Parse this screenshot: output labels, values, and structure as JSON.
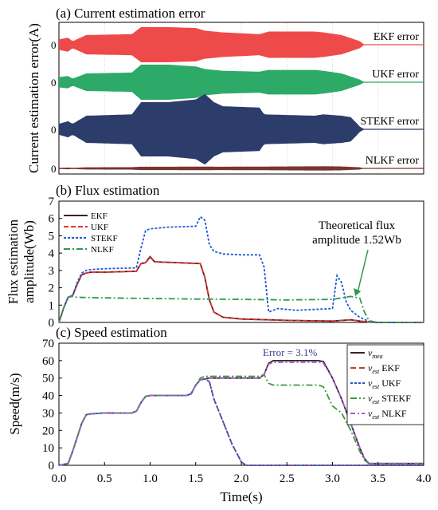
{
  "figure": {
    "shared_xlabel": "Time(s)",
    "x_ticks": [
      "0.0",
      "0.5",
      "1.0",
      "1.5",
      "2.0",
      "2.5",
      "3.0",
      "3.5",
      "4.0"
    ]
  },
  "chart_data": [
    {
      "panel": "a",
      "type": "area",
      "title": "(a) Current estimation error",
      "ylabel": "Current estimation error(A)",
      "xlim": [
        0,
        4
      ],
      "series": [
        {
          "name": "EKF error",
          "color": "#ef4a4a",
          "zero_label": "0",
          "envelope": {
            "t": [
              0.0,
              0.1,
              0.15,
              0.3,
              0.8,
              0.9,
              1.2,
              1.5,
              1.6,
              1.8,
              2.2,
              2.3,
              2.8,
              2.9,
              3.1,
              3.3,
              3.35,
              4.0
            ],
            "amplitude": [
              0.3,
              0.4,
              0.2,
              0.55,
              0.6,
              1.0,
              1.0,
              0.95,
              0.8,
              0.7,
              0.6,
              0.75,
              0.75,
              0.7,
              0.55,
              0.2,
              0.0,
              0.0
            ]
          }
        },
        {
          "name": "UKF error",
          "color": "#2eaa68",
          "zero_label": "0",
          "envelope": {
            "t": [
              0.0,
              0.1,
              0.15,
              0.3,
              0.8,
              0.9,
              1.2,
              1.5,
              1.6,
              1.8,
              2.2,
              2.3,
              2.8,
              2.9,
              3.1,
              3.3,
              3.35,
              4.0
            ],
            "amplitude": [
              0.3,
              0.35,
              0.2,
              0.5,
              0.55,
              1.0,
              1.0,
              0.9,
              0.75,
              0.65,
              0.6,
              0.7,
              0.7,
              0.65,
              0.5,
              0.15,
              0.0,
              0.0
            ]
          }
        },
        {
          "name": "STEKF error",
          "color": "#2c3d6b",
          "zero_label": "0",
          "envelope": {
            "t": [
              0.0,
              0.1,
              0.15,
              0.3,
              0.8,
              0.9,
              1.2,
              1.5,
              1.6,
              1.7,
              1.8,
              2.2,
              2.25,
              2.8,
              2.9,
              3.1,
              3.2,
              3.3,
              3.35,
              4.0
            ],
            "amplitude": [
              0.2,
              0.3,
              0.2,
              0.5,
              0.55,
              1.0,
              1.0,
              1.1,
              1.3,
              1.0,
              0.85,
              0.8,
              0.55,
              0.5,
              0.55,
              0.5,
              0.45,
              0.1,
              0.0,
              0.0
            ]
          }
        },
        {
          "name": "NLKF error",
          "color": "#7a3533",
          "zero_label": "0",
          "envelope": {
            "t": [
              0.0,
              0.1,
              0.15,
              0.3,
              0.8,
              0.9,
              1.2,
              1.5,
              1.8,
              2.5,
              2.9,
              3.1,
              3.3,
              3.35,
              4.0
            ],
            "amplitude": [
              0.1,
              0.15,
              0.1,
              0.2,
              0.22,
              0.3,
              0.3,
              0.32,
              0.3,
              0.35,
              0.38,
              0.35,
              0.2,
              0.0,
              0.0
            ]
          }
        }
      ]
    },
    {
      "panel": "b",
      "type": "line",
      "title": "(b) Flux estimation",
      "ylabel": "Flux estimation amplitude(Wb)",
      "ylim": [
        0,
        7
      ],
      "y_ticks": [
        "0",
        "1",
        "2",
        "3",
        "4",
        "5",
        "6",
        "7"
      ],
      "xlim": [
        0,
        4
      ],
      "legend_position": "top-left",
      "annotation": {
        "lines": [
          "Theoretical flux",
          "amplitude 1.52Wb"
        ],
        "arrow_to": [
          3.25,
          1.52
        ]
      },
      "series": [
        {
          "name": "EKF",
          "color": "#3a2424",
          "dash": "",
          "x": [
            0.0,
            0.05,
            0.1,
            0.15,
            0.2,
            0.25,
            0.3,
            0.35,
            0.5,
            0.85,
            0.9,
            0.95,
            1.0,
            1.05,
            1.3,
            1.55,
            1.6,
            1.65,
            1.7,
            1.8,
            2.0,
            2.5,
            3.0,
            3.2,
            3.3,
            3.4,
            3.5,
            4.0
          ],
          "y": [
            0.0,
            0.8,
            1.45,
            1.55,
            2.2,
            2.75,
            2.85,
            2.9,
            2.9,
            2.95,
            3.4,
            3.45,
            3.8,
            3.5,
            3.45,
            3.4,
            2.6,
            1.3,
            0.6,
            0.3,
            0.2,
            0.12,
            0.08,
            0.15,
            0.08,
            0.02,
            0.0,
            0.0
          ]
        },
        {
          "name": "UKF",
          "color": "#e8322c",
          "dash": "6,3",
          "x": [
            0.0,
            0.05,
            0.1,
            0.15,
            0.2,
            0.25,
            0.3,
            0.35,
            0.5,
            0.85,
            0.9,
            0.95,
            1.0,
            1.05,
            1.3,
            1.55,
            1.6,
            1.65,
            1.7,
            1.8,
            2.0,
            2.5,
            3.0,
            3.2,
            3.3,
            3.4,
            3.5,
            4.0
          ],
          "y": [
            0.0,
            0.8,
            1.45,
            1.55,
            2.2,
            2.75,
            2.85,
            2.9,
            2.9,
            2.95,
            3.4,
            3.45,
            3.75,
            3.5,
            3.45,
            3.4,
            2.6,
            1.3,
            0.6,
            0.3,
            0.2,
            0.12,
            0.08,
            0.15,
            0.08,
            0.02,
            0.0,
            0.0
          ]
        },
        {
          "name": "STEKF",
          "color": "#1f5bd6",
          "dash": "3,2",
          "x": [
            0.0,
            0.05,
            0.1,
            0.15,
            0.2,
            0.25,
            0.3,
            0.35,
            0.5,
            0.85,
            0.9,
            0.95,
            1.0,
            1.2,
            1.5,
            1.55,
            1.6,
            1.65,
            1.7,
            1.8,
            2.0,
            2.2,
            2.25,
            2.3,
            2.4,
            2.6,
            2.8,
            3.0,
            3.05,
            3.1,
            3.15,
            3.2,
            3.3,
            3.4,
            3.5,
            4.0
          ],
          "y": [
            0.0,
            0.8,
            1.45,
            1.55,
            2.3,
            2.85,
            3.0,
            3.05,
            3.1,
            3.15,
            4.3,
            5.3,
            5.4,
            5.5,
            5.55,
            6.1,
            5.9,
            4.5,
            4.1,
            3.95,
            3.9,
            3.9,
            3.2,
            0.6,
            0.8,
            0.7,
            0.75,
            0.8,
            2.7,
            2.3,
            1.2,
            0.7,
            0.3,
            0.05,
            0.0,
            0.0
          ]
        },
        {
          "name": "NLKF",
          "color": "#2e9a48",
          "dash": "8,3,2,3",
          "x": [
            0.0,
            0.05,
            0.1,
            0.15,
            0.2,
            0.5,
            1.0,
            1.5,
            2.0,
            2.5,
            3.0,
            3.2,
            3.3,
            3.35,
            3.4,
            3.5,
            4.0
          ],
          "y": [
            0.0,
            0.8,
            1.45,
            1.5,
            1.45,
            1.42,
            1.38,
            1.35,
            1.33,
            1.3,
            1.33,
            1.5,
            1.4,
            0.6,
            0.1,
            0.0,
            0.0
          ]
        }
      ]
    },
    {
      "panel": "c",
      "type": "line",
      "title": "(c) Speed estimation",
      "ylabel": "Speed(m/s)",
      "xlabel": "Time(s)",
      "ylim": [
        0,
        70
      ],
      "y_ticks": [
        "0",
        "10",
        "20",
        "30",
        "40",
        "50",
        "60",
        "70"
      ],
      "xlim": [
        0,
        4
      ],
      "legend_position": "right",
      "annotation": {
        "text": "Error = 3.1%"
      },
      "series": [
        {
          "name_main": "v",
          "name_sub": "mea",
          "name_suffix": "",
          "color": "#3a2424",
          "dash": "",
          "x": [
            0.0,
            0.1,
            0.15,
            0.25,
            0.3,
            0.35,
            0.5,
            0.8,
            0.85,
            0.9,
            0.95,
            1.0,
            1.4,
            1.45,
            1.5,
            1.55,
            1.6,
            1.65,
            2.2,
            2.25,
            2.3,
            2.35,
            2.85,
            2.9,
            3.0,
            3.1,
            3.2,
            3.3,
            3.35,
            3.4,
            4.0
          ],
          "y": [
            0.0,
            1.0,
            8.0,
            24.0,
            29.0,
            29.5,
            30.0,
            30.0,
            31.0,
            36.0,
            39.5,
            40.0,
            40.0,
            41.0,
            46.0,
            49.0,
            49.5,
            50.0,
            50.0,
            52.0,
            58.5,
            60.0,
            60.0,
            59.5,
            50.0,
            38.0,
            24.0,
            10.0,
            4.0,
            1.0,
            1.0
          ]
        },
        {
          "name_main": "v",
          "name_sub": "est",
          "name_suffix": " EKF",
          "color": "#c23b2e",
          "dash": "7,4",
          "x": [
            0.0,
            0.1,
            0.15,
            0.25,
            0.3,
            0.35,
            0.5,
            0.8,
            0.85,
            0.9,
            0.95,
            1.0,
            1.4,
            1.45,
            1.5,
            1.55,
            1.6,
            1.65,
            1.7,
            1.8,
            1.9,
            2.0,
            2.05,
            4.0
          ],
          "y": [
            0.0,
            1.0,
            8.0,
            24.0,
            29.0,
            29.5,
            30.0,
            30.0,
            31.0,
            36.0,
            39.5,
            40.0,
            40.0,
            41.0,
            46.0,
            49.0,
            49.5,
            48.0,
            38.0,
            25.0,
            12.0,
            2.0,
            0.0,
            0.0
          ]
        },
        {
          "name_main": "v",
          "name_sub": "est",
          "name_suffix": " UKF",
          "color": "#1f4fd6",
          "dash": "3,2",
          "x": [
            0.0,
            0.1,
            0.15,
            0.25,
            0.3,
            0.35,
            0.5,
            0.8,
            0.85,
            0.9,
            0.95,
            1.0,
            1.4,
            1.45,
            1.5,
            1.55,
            1.6,
            1.65,
            1.7,
            1.8,
            1.9,
            2.0,
            2.05,
            4.0
          ],
          "y": [
            0.0,
            1.0,
            8.0,
            24.0,
            29.0,
            29.5,
            30.0,
            30.0,
            31.0,
            36.0,
            39.5,
            40.0,
            40.0,
            41.0,
            46.0,
            49.0,
            49.5,
            48.0,
            38.0,
            25.0,
            12.0,
            2.0,
            0.0,
            0.0
          ]
        },
        {
          "name_main": "v",
          "name_sub": "est",
          "name_suffix": " STEKF",
          "color": "#3c9a3c",
          "dash": "8,3,2,3",
          "x": [
            0.0,
            0.1,
            0.15,
            0.25,
            0.3,
            0.35,
            0.5,
            0.8,
            0.85,
            0.9,
            0.95,
            1.0,
            1.4,
            1.45,
            1.5,
            1.55,
            1.6,
            1.65,
            2.2,
            2.25,
            2.3,
            2.35,
            2.85,
            2.9,
            3.0,
            3.1,
            3.2,
            3.3,
            3.35,
            3.4,
            4.0
          ],
          "y": [
            0.0,
            1.0,
            8.0,
            24.0,
            29.0,
            29.5,
            30.0,
            30.0,
            31.0,
            36.0,
            39.5,
            40.0,
            40.0,
            41.0,
            46.0,
            50.0,
            51.0,
            51.0,
            51.0,
            52.0,
            47.0,
            46.0,
            46.0,
            45.0,
            34.0,
            30.0,
            20.0,
            8.0,
            3.0,
            1.0,
            1.0
          ]
        },
        {
          "name_main": "v",
          "name_sub": "est",
          "name_suffix": " NLKF",
          "color": "#a15ad4",
          "dash": "6,3,2,3",
          "x": [
            0.0,
            0.1,
            0.15,
            0.25,
            0.3,
            0.35,
            0.5,
            0.8,
            0.85,
            0.9,
            0.95,
            1.0,
            1.4,
            1.45,
            1.5,
            1.55,
            1.6,
            1.65,
            2.2,
            2.25,
            2.3,
            2.35,
            2.85,
            2.9,
            3.0,
            3.1,
            3.2,
            3.3,
            3.35,
            3.4,
            4.0
          ],
          "y": [
            0.0,
            1.0,
            8.0,
            24.0,
            29.0,
            29.5,
            30.0,
            30.0,
            31.0,
            36.0,
            39.5,
            40.0,
            40.0,
            41.0,
            46.0,
            49.0,
            49.5,
            50.0,
            50.0,
            52.0,
            58.0,
            59.0,
            59.0,
            58.5,
            50.0,
            38.0,
            24.0,
            10.0,
            4.0,
            1.0,
            1.0
          ]
        }
      ]
    }
  ]
}
